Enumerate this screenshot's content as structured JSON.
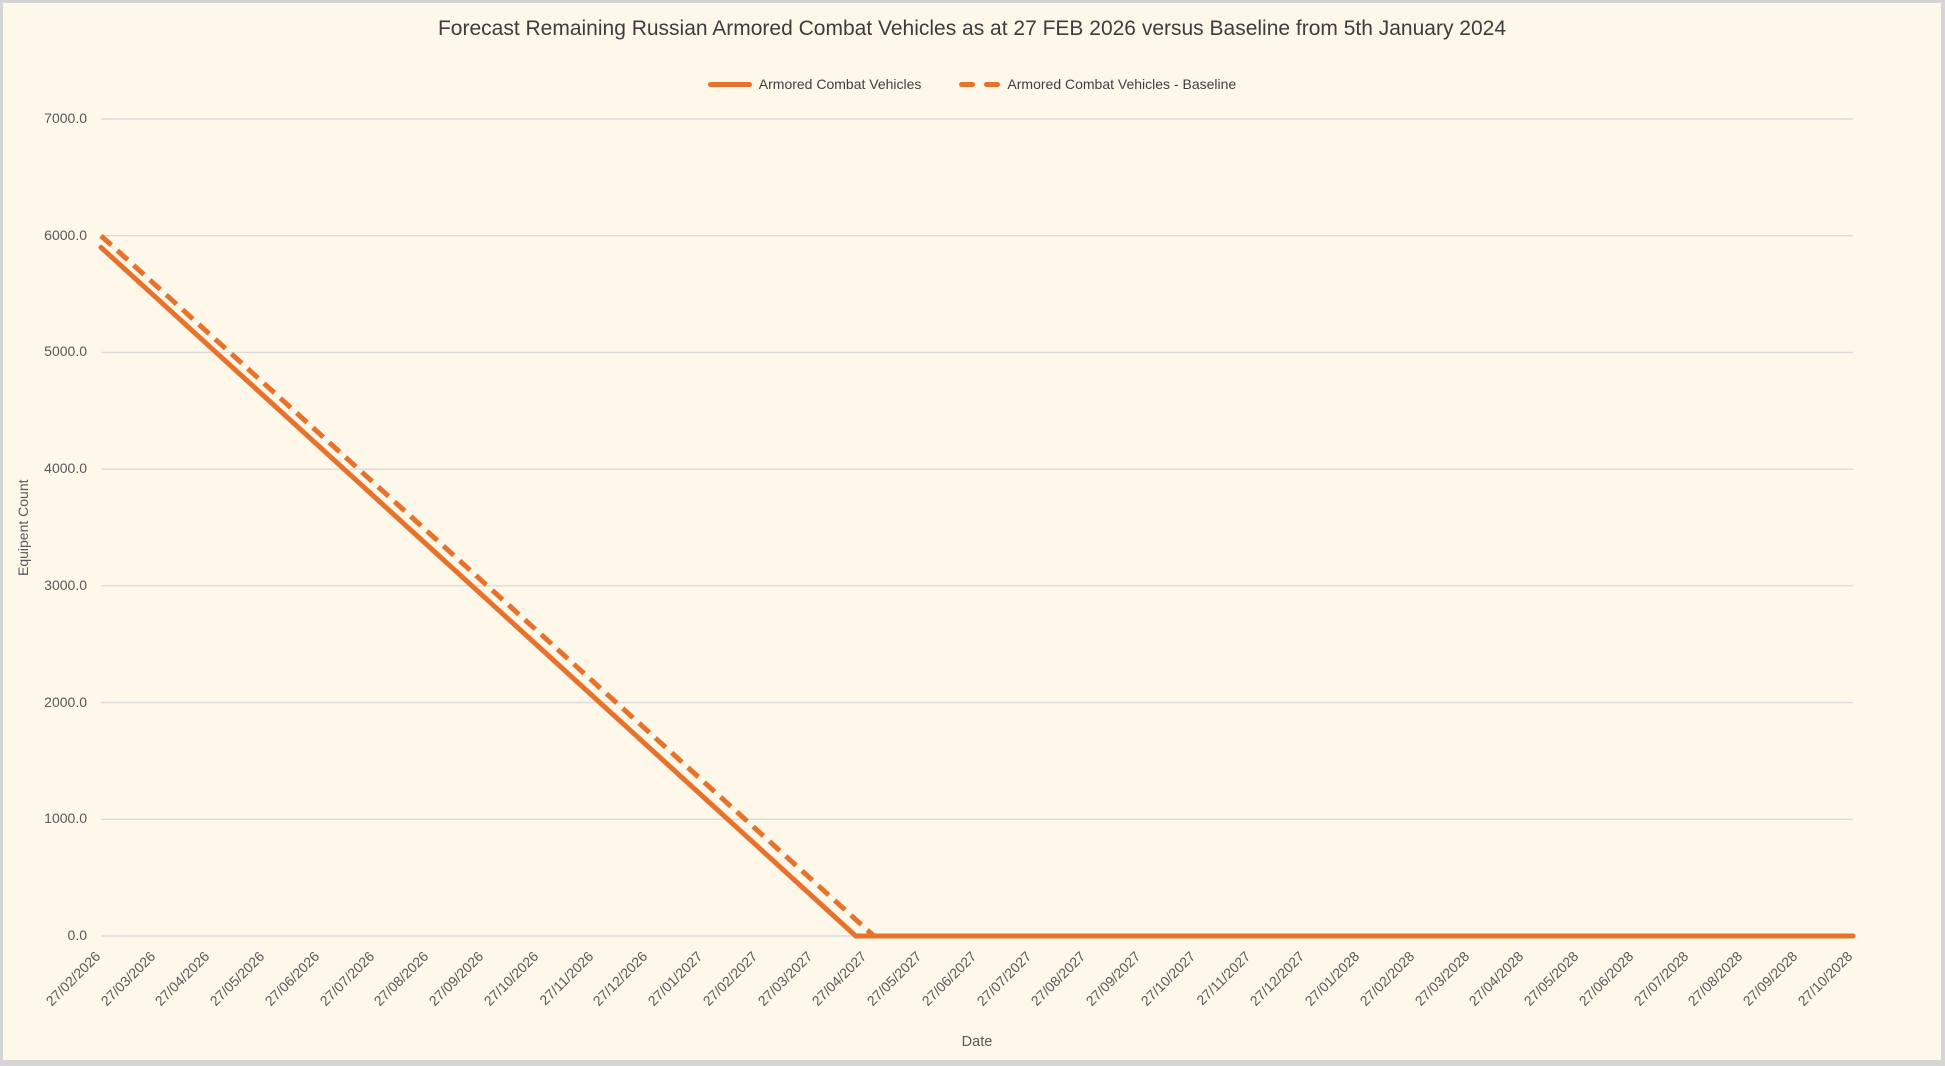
{
  "theme": {
    "background": "#FDF8E9",
    "window_border": "#D5D5D5",
    "gridline": "#DBDBDB",
    "accent": "#E6722C",
    "title_color": "#3D3D3D",
    "legend_color": "#404040",
    "tick_color": "#595959"
  },
  "chart_data": {
    "type": "line",
    "title": "Forecast Remaining Russian Armored Combat Vehicles as at 27 FEB 2026 versus Baseline from 5th January 2024",
    "xlabel": "Date",
    "ylabel": "Equipent Count",
    "ylim": [
      0,
      7000
    ],
    "y_ticks": [
      "0.0",
      "1000.0",
      "2000.0",
      "3000.0",
      "4000.0",
      "5000.0",
      "6000.0",
      "7000.0"
    ],
    "grid": "horizontal",
    "legend_position": "top",
    "categories": [
      "27/02/2026",
      "27/03/2026",
      "27/04/2026",
      "27/05/2026",
      "27/06/2026",
      "27/07/2026",
      "27/08/2026",
      "27/09/2026",
      "27/10/2026",
      "27/11/2026",
      "27/12/2026",
      "27/01/2027",
      "27/02/2027",
      "27/03/2027",
      "27/04/2027",
      "27/05/2027",
      "27/06/2027",
      "27/07/2027",
      "27/08/2027",
      "27/09/2027",
      "27/10/2027",
      "27/11/2027",
      "27/12/2027",
      "27/01/2028",
      "27/02/2028",
      "27/03/2028",
      "27/04/2028",
      "27/05/2028",
      "27/06/2028",
      "27/07/2028",
      "27/08/2028",
      "27/09/2028",
      "27/10/2028"
    ],
    "series": [
      {
        "name": "Armored Combat Vehicles",
        "style": "solid",
        "color": "#E6722C",
        "values": [
          5900,
          5472,
          5044,
          4616,
          4188,
          3760,
          3332,
          2904,
          2476,
          2048,
          1620,
          1192,
          764,
          336,
          0,
          0,
          0,
          0,
          0,
          0,
          0,
          0,
          0,
          0,
          0,
          0,
          0,
          0,
          0,
          0,
          0,
          0,
          0
        ]
      },
      {
        "name": "Armored Combat Vehicles - Baseline",
        "style": "dashed",
        "color": "#E6722C",
        "values": [
          6000,
          5575,
          5150,
          4725,
          4300,
          3875,
          3450,
          3025,
          2600,
          2175,
          1750,
          1325,
          900,
          475,
          0,
          0,
          0,
          0,
          0,
          0,
          0,
          0,
          0,
          0,
          0,
          0,
          0,
          0,
          0,
          0,
          0,
          0,
          0
        ]
      }
    ]
  }
}
